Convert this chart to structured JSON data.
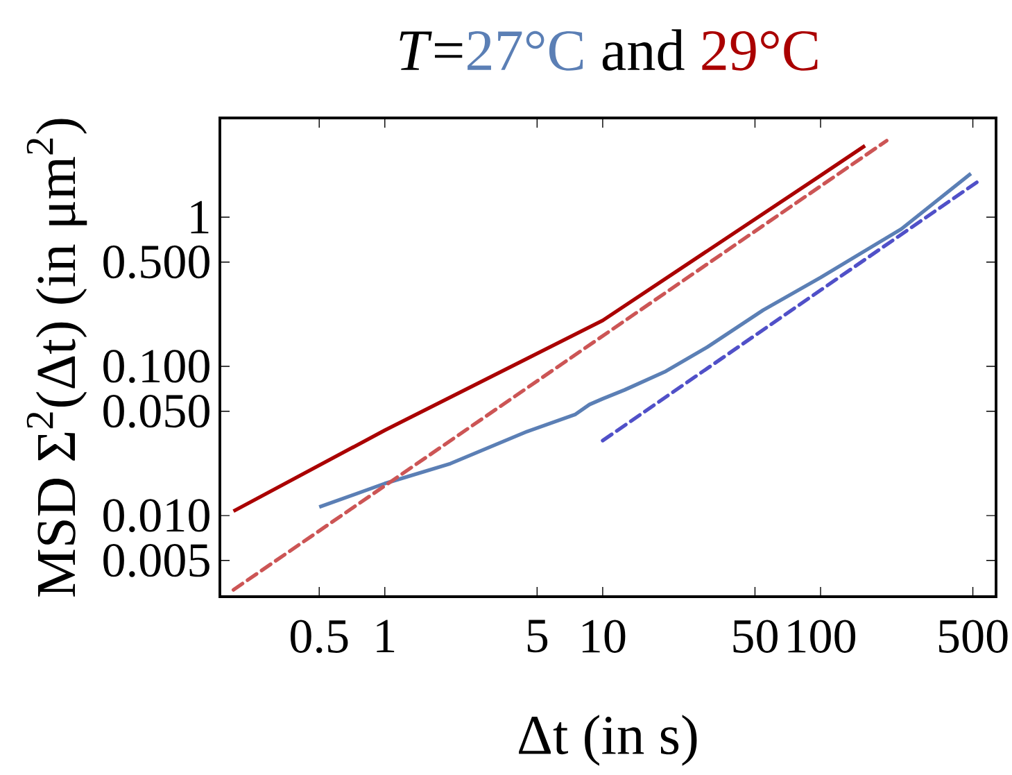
{
  "chart_data": {
    "type": "line",
    "title": "*T*=",
    "annotations": [
      "and"
    ],
    "xlabel": "Δt (in s)",
    "ylabel": "MSD  Σ$^{2}$(Δt)  (in μm$^{2}$)",
    "log": "xy",
    "grid": false,
    "marker": "none",
    "xlim": [
      0.175,
      639
    ],
    "ylim": [
      0.00286,
      4.62
    ],
    "xticks": [
      0.5,
      1,
      5,
      10,
      50,
      100,
      500
    ],
    "yticks": [
      {
        "value": 0.005,
        "label": "0.005"
      },
      {
        "value": 0.01,
        "label": "0.010"
      },
      {
        "value": 0.05,
        "label": "0.050"
      },
      {
        "value": 0.1,
        "label": "0.100"
      },
      {
        "value": 0.5,
        "label": "0.500"
      },
      1
    ],
    "series": [
      {
        "name": "27°C",
        "color": "#5b7fb5",
        "line_style": "solid",
        "x": [
          0.5,
          1,
          2.0,
          4.5,
          7.5,
          8.7,
          10,
          12.6,
          19.5,
          30.3,
          54.5,
          100,
          235,
          490
        ],
        "values": [
          0.0114,
          0.0164,
          0.0223,
          0.0366,
          0.0477,
          0.0555,
          0.0606,
          0.0695,
          0.0927,
          0.135,
          0.238,
          0.394,
          0.833,
          1.96
        ]
      },
      {
        "name": "29°C",
        "color": "#aa0000",
        "line_style": "solid",
        "x": [
          0.202,
          1,
          10,
          100,
          160
        ],
        "values": [
          0.0107,
          0.0373,
          0.203,
          1.9,
          3.01
        ]
      },
      {
        "color": "#cc5555",
        "line_style": "dashed",
        "x": [
          0.202,
          201
        ],
        "values": [
          0.00318,
          3.25
        ]
      },
      {
        "color": "#5050c8",
        "line_style": "dashed",
        "x": [
          10,
          521
        ],
        "values": [
          0.0318,
          1.71
        ]
      }
    ]
  }
}
